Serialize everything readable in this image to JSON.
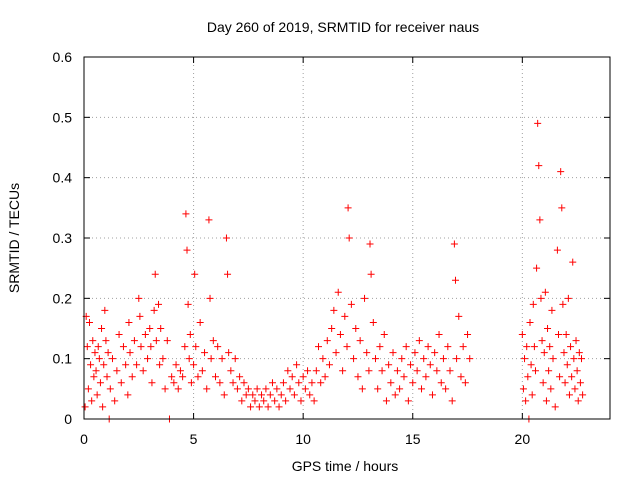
{
  "chart_data": {
    "type": "scatter",
    "title": "Day 260 of 2019, SRMTID for receiver naus",
    "xlabel": "GPS time / hours",
    "ylabel": "SRMTID / TECUs",
    "xlim": [
      0,
      24
    ],
    "ylim": [
      0,
      0.6
    ],
    "x_ticks": [
      0,
      5,
      10,
      15,
      20
    ],
    "x_tick_labels": [
      "0",
      "5",
      "10",
      "15",
      "20"
    ],
    "y_ticks": [
      0,
      0.1,
      0.2,
      0.3,
      0.4,
      0.5,
      0.6
    ],
    "y_tick_labels": [
      "0",
      "0.1",
      "0.2",
      "0.3",
      "0.4",
      "0.5",
      "0.6"
    ],
    "grid": true,
    "marker": "+",
    "color": "#ff0000",
    "series": [
      {
        "name": "SRMTID",
        "points": [
          [
            0.05,
            0.02
          ],
          [
            0.1,
            0.17
          ],
          [
            0.15,
            0.12
          ],
          [
            0.2,
            0.05
          ],
          [
            0.25,
            0.16
          ],
          [
            0.3,
            0.09
          ],
          [
            0.35,
            0.03
          ],
          [
            0.4,
            0.13
          ],
          [
            0.45,
            0.07
          ],
          [
            0.5,
            0.11
          ],
          [
            0.55,
            0.08
          ],
          [
            0.6,
            0.04
          ],
          [
            0.65,
            0.12
          ],
          [
            0.7,
            0.1
          ],
          [
            0.75,
            0.06
          ],
          [
            0.8,
            0.15
          ],
          [
            0.85,
            0.02
          ],
          [
            0.9,
            0.09
          ],
          [
            0.95,
            0.18
          ],
          [
            1.0,
            0.13
          ],
          [
            1.05,
            0.07
          ],
          [
            1.1,
            0.11
          ],
          [
            1.15,
            0.0
          ],
          [
            1.2,
            0.05
          ],
          [
            1.3,
            0.1
          ],
          [
            1.4,
            0.03
          ],
          [
            1.5,
            0.08
          ],
          [
            1.6,
            0.14
          ],
          [
            1.7,
            0.06
          ],
          [
            1.8,
            0.12
          ],
          [
            1.9,
            0.09
          ],
          [
            2.0,
            0.04
          ],
          [
            2.05,
            0.16
          ],
          [
            2.1,
            0.11
          ],
          [
            2.2,
            0.07
          ],
          [
            2.3,
            0.13
          ],
          [
            2.4,
            0.09
          ],
          [
            2.5,
            0.2
          ],
          [
            2.55,
            0.17
          ],
          [
            2.6,
            0.12
          ],
          [
            2.7,
            0.08
          ],
          [
            2.8,
            0.14
          ],
          [
            2.9,
            0.1
          ],
          [
            3.0,
            0.15
          ],
          [
            3.05,
            0.12
          ],
          [
            3.1,
            0.06
          ],
          [
            3.2,
            0.18
          ],
          [
            3.25,
            0.24
          ],
          [
            3.3,
            0.13
          ],
          [
            3.4,
            0.19
          ],
          [
            3.45,
            0.09
          ],
          [
            3.5,
            0.15
          ],
          [
            3.6,
            0.1
          ],
          [
            3.7,
            0.05
          ],
          [
            3.8,
            0.13
          ],
          [
            3.9,
            0.0
          ],
          [
            4.0,
            0.07
          ],
          [
            4.1,
            0.06
          ],
          [
            4.2,
            0.09
          ],
          [
            4.3,
            0.05
          ],
          [
            4.4,
            0.08
          ],
          [
            4.5,
            0.07
          ],
          [
            4.6,
            0.12
          ],
          [
            4.65,
            0.34
          ],
          [
            4.7,
            0.28
          ],
          [
            4.75,
            0.19
          ],
          [
            4.8,
            0.1
          ],
          [
            4.85,
            0.14
          ],
          [
            4.9,
            0.06
          ],
          [
            5.0,
            0.09
          ],
          [
            5.05,
            0.24
          ],
          [
            5.1,
            0.12
          ],
          [
            5.2,
            0.07
          ],
          [
            5.3,
            0.16
          ],
          [
            5.4,
            0.08
          ],
          [
            5.5,
            0.11
          ],
          [
            5.6,
            0.05
          ],
          [
            5.7,
            0.33
          ],
          [
            5.75,
            0.2
          ],
          [
            5.8,
            0.1
          ],
          [
            5.9,
            0.13
          ],
          [
            6.0,
            0.07
          ],
          [
            6.1,
            0.12
          ],
          [
            6.2,
            0.06
          ],
          [
            6.3,
            0.1
          ],
          [
            6.4,
            0.04
          ],
          [
            6.5,
            0.3
          ],
          [
            6.55,
            0.24
          ],
          [
            6.6,
            0.11
          ],
          [
            6.7,
            0.08
          ],
          [
            6.8,
            0.06
          ],
          [
            6.9,
            0.1
          ],
          [
            7.0,
            0.05
          ],
          [
            7.1,
            0.07
          ],
          [
            7.2,
            0.03
          ],
          [
            7.3,
            0.06
          ],
          [
            7.4,
            0.04
          ],
          [
            7.5,
            0.05
          ],
          [
            7.6,
            0.02
          ],
          [
            7.7,
            0.04
          ],
          [
            7.8,
            0.03
          ],
          [
            7.9,
            0.05
          ],
          [
            8.0,
            0.02
          ],
          [
            8.1,
            0.04
          ],
          [
            8.2,
            0.03
          ],
          [
            8.3,
            0.05
          ],
          [
            8.4,
            0.02
          ],
          [
            8.5,
            0.04
          ],
          [
            8.6,
            0.06
          ],
          [
            8.7,
            0.03
          ],
          [
            8.8,
            0.05
          ],
          [
            8.9,
            0.02
          ],
          [
            9.0,
            0.04
          ],
          [
            9.1,
            0.06
          ],
          [
            9.2,
            0.03
          ],
          [
            9.3,
            0.08
          ],
          [
            9.4,
            0.05
          ],
          [
            9.5,
            0.07
          ],
          [
            9.6,
            0.04
          ],
          [
            9.7,
            0.09
          ],
          [
            9.8,
            0.06
          ],
          [
            9.9,
            0.03
          ],
          [
            10.0,
            0.07
          ],
          [
            10.1,
            0.05
          ],
          [
            10.2,
            0.08
          ],
          [
            10.3,
            0.04
          ],
          [
            10.4,
            0.06
          ],
          [
            10.5,
            0.03
          ],
          [
            10.6,
            0.08
          ],
          [
            10.7,
            0.12
          ],
          [
            10.8,
            0.06
          ],
          [
            10.9,
            0.1
          ],
          [
            11.0,
            0.07
          ],
          [
            11.1,
            0.13
          ],
          [
            11.2,
            0.09
          ],
          [
            11.3,
            0.15
          ],
          [
            11.4,
            0.18
          ],
          [
            11.5,
            0.11
          ],
          [
            11.6,
            0.21
          ],
          [
            11.7,
            0.14
          ],
          [
            11.8,
            0.08
          ],
          [
            11.9,
            0.17
          ],
          [
            12.0,
            0.12
          ],
          [
            12.05,
            0.35
          ],
          [
            12.1,
            0.3
          ],
          [
            12.2,
            0.19
          ],
          [
            12.3,
            0.1
          ],
          [
            12.4,
            0.15
          ],
          [
            12.5,
            0.07
          ],
          [
            12.6,
            0.13
          ],
          [
            12.7,
            0.05
          ],
          [
            12.8,
            0.2
          ],
          [
            12.9,
            0.11
          ],
          [
            13.0,
            0.08
          ],
          [
            13.05,
            0.29
          ],
          [
            13.1,
            0.24
          ],
          [
            13.2,
            0.16
          ],
          [
            13.3,
            0.1
          ],
          [
            13.4,
            0.05
          ],
          [
            13.5,
            0.12
          ],
          [
            13.6,
            0.08
          ],
          [
            13.7,
            0.14
          ],
          [
            13.8,
            0.03
          ],
          [
            13.9,
            0.09
          ],
          [
            14.0,
            0.06
          ],
          [
            14.1,
            0.11
          ],
          [
            14.2,
            0.04
          ],
          [
            14.3,
            0.08
          ],
          [
            14.4,
            0.05
          ],
          [
            14.5,
            0.1
          ],
          [
            14.6,
            0.07
          ],
          [
            14.7,
            0.12
          ],
          [
            14.8,
            0.03
          ],
          [
            14.9,
            0.09
          ],
          [
            15.0,
            0.06
          ],
          [
            15.1,
            0.11
          ],
          [
            15.2,
            0.08
          ],
          [
            15.3,
            0.13
          ],
          [
            15.4,
            0.05
          ],
          [
            15.5,
            0.1
          ],
          [
            15.6,
            0.07
          ],
          [
            15.7,
            0.12
          ],
          [
            15.8,
            0.09
          ],
          [
            15.9,
            0.04
          ],
          [
            16.0,
            0.11
          ],
          [
            16.1,
            0.08
          ],
          [
            16.2,
            0.14
          ],
          [
            16.3,
            0.06
          ],
          [
            16.4,
            0.1
          ],
          [
            16.5,
            0.05
          ],
          [
            16.6,
            0.12
          ],
          [
            16.7,
            0.08
          ],
          [
            16.8,
            0.03
          ],
          [
            16.9,
            0.29
          ],
          [
            16.95,
            0.23
          ],
          [
            17.0,
            0.1
          ],
          [
            17.1,
            0.17
          ],
          [
            17.2,
            0.07
          ],
          [
            17.3,
            0.12
          ],
          [
            17.4,
            0.06
          ],
          [
            17.5,
            0.14
          ],
          [
            17.6,
            0.1
          ],
          [
            20.0,
            0.14
          ],
          [
            20.05,
            0.05
          ],
          [
            20.1,
            0.1
          ],
          [
            20.15,
            0.03
          ],
          [
            20.2,
            0.12
          ],
          [
            20.25,
            0.07
          ],
          [
            20.3,
            0.0
          ],
          [
            20.35,
            0.16
          ],
          [
            20.4,
            0.09
          ],
          [
            20.45,
            0.04
          ],
          [
            20.5,
            0.19
          ],
          [
            20.55,
            0.12
          ],
          [
            20.6,
            0.08
          ],
          [
            20.65,
            0.25
          ],
          [
            20.7,
            0.49
          ],
          [
            20.75,
            0.42
          ],
          [
            20.8,
            0.33
          ],
          [
            20.85,
            0.2
          ],
          [
            20.9,
            0.13
          ],
          [
            20.95,
            0.06
          ],
          [
            21.0,
            0.11
          ],
          [
            21.05,
            0.21
          ],
          [
            21.1,
            0.03
          ],
          [
            21.15,
            0.15
          ],
          [
            21.2,
            0.08
          ],
          [
            21.25,
            0.12
          ],
          [
            21.3,
            0.05
          ],
          [
            21.35,
            0.18
          ],
          [
            21.4,
            0.1
          ],
          [
            21.5,
            0.02
          ],
          [
            21.6,
            0.28
          ],
          [
            21.65,
            0.14
          ],
          [
            21.7,
            0.07
          ],
          [
            21.75,
            0.41
          ],
          [
            21.8,
            0.35
          ],
          [
            21.85,
            0.19
          ],
          [
            21.9,
            0.11
          ],
          [
            21.95,
            0.06
          ],
          [
            22.0,
            0.14
          ],
          [
            22.05,
            0.09
          ],
          [
            22.1,
            0.2
          ],
          [
            22.15,
            0.04
          ],
          [
            22.2,
            0.12
          ],
          [
            22.25,
            0.07
          ],
          [
            22.3,
            0.26
          ],
          [
            22.35,
            0.1
          ],
          [
            22.4,
            0.05
          ],
          [
            22.45,
            0.13
          ],
          [
            22.5,
            0.08
          ],
          [
            22.55,
            0.03
          ],
          [
            22.6,
            0.11
          ],
          [
            22.65,
            0.06
          ],
          [
            22.7,
            0.1
          ],
          [
            22.75,
            0.04
          ]
        ]
      }
    ]
  }
}
